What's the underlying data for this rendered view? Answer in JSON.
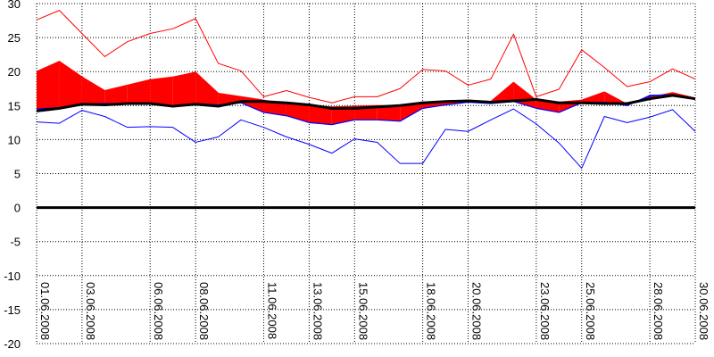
{
  "chart_data": {
    "type": "line",
    "title": "",
    "xlabel": "",
    "ylabel": "",
    "ylim": [
      -20,
      30
    ],
    "y_ticks": [
      -20,
      -15,
      -10,
      -5,
      0,
      5,
      10,
      15,
      20,
      25,
      30
    ],
    "x_tick_labels": [
      "01.06.2008",
      "03.06.2008",
      "06.06.2008",
      "08.06.2008",
      "11.06.2008",
      "13.06.2008",
      "15.06.2008",
      "18.06.2008",
      "20.06.2008",
      "23.06.2008",
      "25.06.2008",
      "28.06.2008",
      "30.06.2008"
    ],
    "grid": true,
    "legend": "none",
    "days": [
      1,
      2,
      3,
      4,
      5,
      6,
      7,
      8,
      9,
      10,
      11,
      12,
      13,
      14,
      15,
      16,
      17,
      18,
      19,
      20,
      21,
      22,
      23,
      24,
      25,
      26,
      27,
      28,
      29,
      30
    ],
    "series": [
      {
        "role": "max",
        "color": "#ff0000",
        "values": [
          27.6,
          29.0,
          25.6,
          22.2,
          24.4,
          25.6,
          26.3,
          27.8,
          21.2,
          20.1,
          16.3,
          17.2,
          16.2,
          15.4,
          16.3,
          16.3,
          17.5,
          20.3,
          20.1,
          18.0,
          18.9,
          25.5,
          16.3,
          17.4,
          23.2,
          20.6,
          17.8,
          18.5,
          20.4,
          18.9
        ]
      },
      {
        "role": "mean",
        "color": "#ff0000",
        "values": [
          20.0,
          21.5,
          19.2,
          17.2,
          18.0,
          18.8,
          19.2,
          19.9,
          16.8,
          16.3,
          15.8,
          15.2,
          15.0,
          14.8,
          14.9,
          15.0,
          15.0,
          15.5,
          15.5,
          15.8,
          15.6,
          18.4,
          15.8,
          15.5,
          15.8,
          17.0,
          15.2,
          16.2,
          16.9,
          16.1
        ]
      },
      {
        "role": "normal",
        "color": "#0000ff",
        "values": [
          14.5,
          14.7,
          15.2,
          15.3,
          15.2,
          15.2,
          15.0,
          15.3,
          15.1,
          15.4,
          14.0,
          13.5,
          12.5,
          12.2,
          12.9,
          12.9,
          12.7,
          14.6,
          15.1,
          15.5,
          15.3,
          15.6,
          14.6,
          14.0,
          15.4,
          15.5,
          15.0,
          16.5,
          16.6,
          16.0
        ]
      },
      {
        "role": "base",
        "color": "#000000",
        "values": [
          14.2,
          14.6,
          15.2,
          15.1,
          15.3,
          15.3,
          14.9,
          15.2,
          14.9,
          15.6,
          15.6,
          15.4,
          15.1,
          14.6,
          14.6,
          14.8,
          15.0,
          15.4,
          15.6,
          15.7,
          15.5,
          15.7,
          15.9,
          15.4,
          15.4,
          15.3,
          15.3,
          16.0,
          16.5,
          16.0
        ]
      },
      {
        "role": "min",
        "color": "#0000ff",
        "values": [
          12.6,
          12.4,
          14.3,
          13.4,
          11.8,
          11.9,
          11.8,
          9.6,
          10.4,
          12.9,
          11.8,
          10.4,
          9.3,
          8.0,
          10.1,
          9.6,
          6.5,
          6.5,
          11.5,
          11.2,
          12.9,
          14.5,
          12.3,
          9.5,
          5.8,
          13.4,
          12.5,
          13.3,
          14.4,
          11.2
        ]
      }
    ]
  }
}
